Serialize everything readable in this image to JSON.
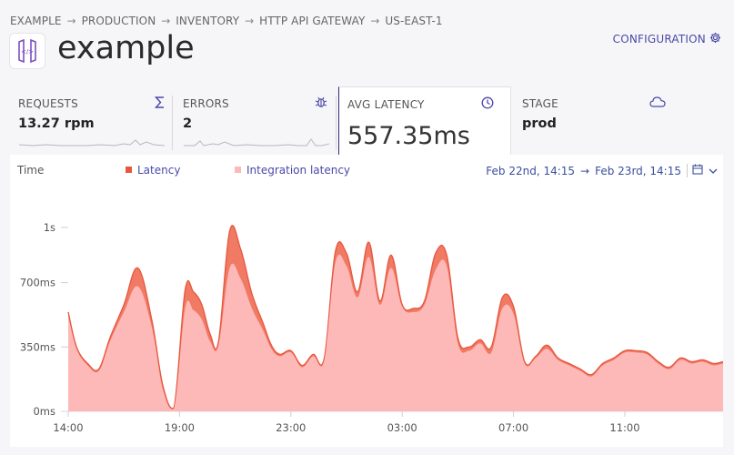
{
  "breadcrumb": [
    "EXAMPLE",
    "PRODUCTION",
    "INVENTORY",
    "HTTP API GATEWAY",
    "US-EAST-1"
  ],
  "breadcrumb_separator": "→",
  "header": {
    "title": "example",
    "config_label": "CONFIGURATION"
  },
  "tiles": {
    "requests": {
      "label": "REQUESTS",
      "value": "13.27 rpm",
      "icon": "sigma-icon"
    },
    "errors": {
      "label": "ERRORS",
      "value": "2",
      "icon": "bug-icon"
    },
    "latency": {
      "label": "AVG LATENCY",
      "value": "557.35ms",
      "icon": "clock-icon"
    },
    "stage": {
      "label": "STAGE",
      "value": "prod",
      "icon": "cloud-icon"
    }
  },
  "chart_header": {
    "time_label": "Time",
    "legend_latency": "Latency",
    "legend_integration": "Integration latency",
    "range_start": "Feb 22nd, 14:15",
    "range_arrow": "→",
    "range_end": "Feb 23rd, 14:15"
  },
  "colors": {
    "latency": "#f07a63",
    "integration": "#fdb8b8",
    "latency_line": "#e8563f",
    "accent": "#4a48a8"
  },
  "chart_data": {
    "type": "area",
    "x_unit": "hours since 14:00",
    "x": [
      0,
      0.3,
      0.7,
      1.1,
      1.5,
      2,
      2.5,
      3,
      3.4,
      3.8,
      4.2,
      4.5,
      4.8,
      5.1,
      5.4,
      5.8,
      6.2,
      6.6,
      7,
      7.3,
      7.6,
      8,
      8.4,
      8.8,
      9.2,
      9.6,
      10,
      10.4,
      10.8,
      11.2,
      11.6,
      12,
      12.4,
      12.8,
      13.2,
      13.6,
      14,
      14.4,
      14.8,
      15.2,
      15.6,
      16,
      16.4,
      16.8,
      17.2,
      17.6,
      18,
      18.4,
      18.8,
      19.2,
      19.6,
      20,
      20.4,
      20.8,
      21.2,
      21.6,
      22,
      22.4,
      22.8,
      23.2,
      23.6,
      24,
      24.3
    ],
    "series": [
      {
        "name": "Latency",
        "values": [
          540,
          350,
          260,
          230,
          400,
          580,
          780,
          500,
          140,
          20,
          660,
          650,
          580,
          420,
          380,
          980,
          880,
          640,
          480,
          360,
          310,
          330,
          250,
          310,
          290,
          870,
          860,
          650,
          920,
          600,
          850,
          580,
          560,
          600,
          860,
          850,
          400,
          350,
          390,
          350,
          620,
          570,
          270,
          300,
          360,
          290,
          260,
          230,
          200,
          260,
          290,
          330,
          330,
          320,
          270,
          240,
          290,
          270,
          280,
          260,
          270,
          250,
          250
        ]
      },
      {
        "name": "Integration latency",
        "values": [
          520,
          340,
          250,
          220,
          380,
          540,
          680,
          460,
          120,
          15,
          560,
          550,
          500,
          380,
          360,
          780,
          720,
          560,
          440,
          340,
          300,
          320,
          240,
          300,
          280,
          810,
          790,
          620,
          840,
          580,
          780,
          570,
          540,
          580,
          770,
          790,
          370,
          330,
          370,
          320,
          560,
          530,
          260,
          290,
          340,
          280,
          250,
          220,
          190,
          250,
          280,
          320,
          320,
          310,
          260,
          230,
          280,
          260,
          270,
          250,
          260,
          240,
          240
        ]
      }
    ],
    "xtick_labels": [
      "14:00",
      "19:00",
      "23:00",
      "03:00",
      "07:00",
      "11:00"
    ],
    "ytick_labels": [
      "0ms",
      "350ms",
      "700ms",
      "1s"
    ],
    "ylim": [
      0,
      1000
    ]
  }
}
